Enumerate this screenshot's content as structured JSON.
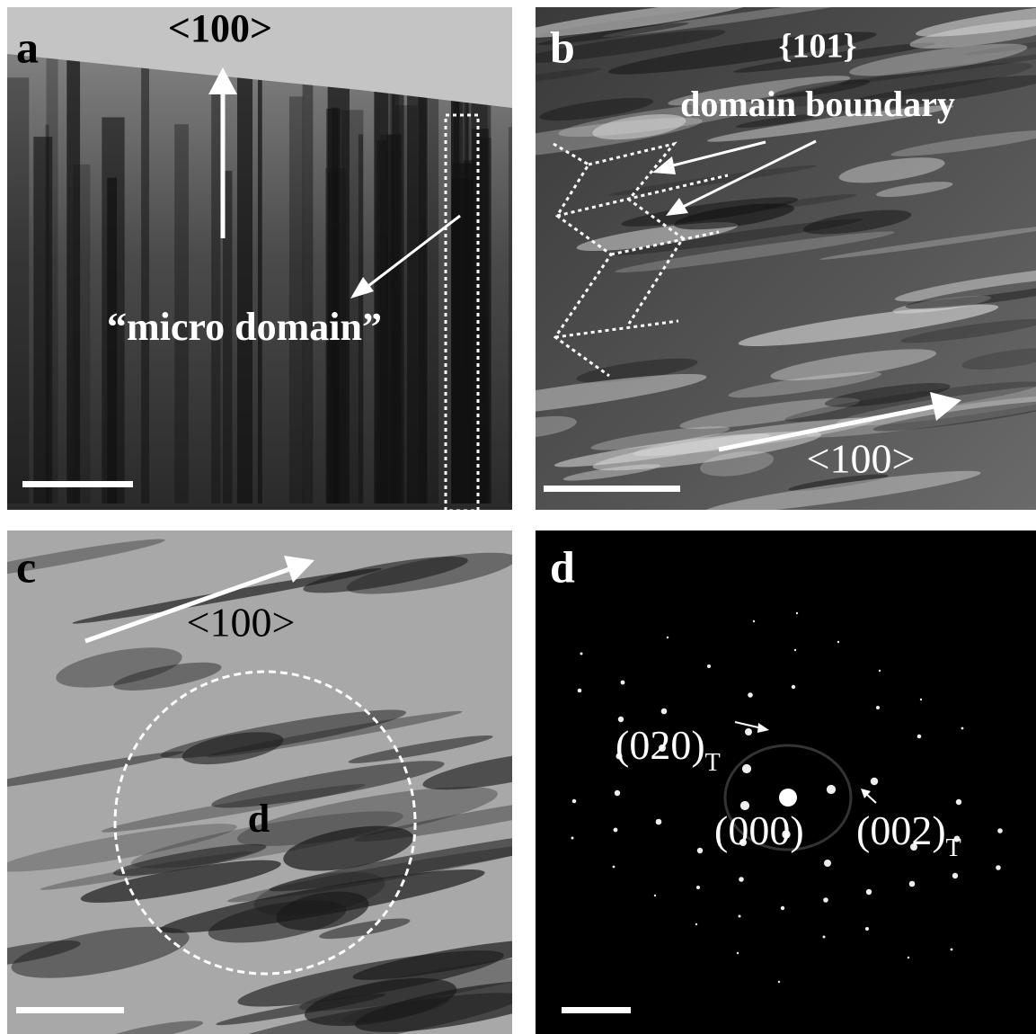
{
  "panels": [
    {
      "label": "a",
      "direction": "<100>",
      "annotation": "“micro domain”"
    },
    {
      "label": "b",
      "plane": "{101}",
      "annotation": "domain boundary",
      "direction": "<100>"
    },
    {
      "label": "c",
      "direction": "<100>",
      "region": "d"
    },
    {
      "label": "d",
      "spots": [
        {
          "text": "(020)",
          "subscript": "T"
        },
        {
          "text": "(000)"
        },
        {
          "text": "(002)",
          "subscript": "T"
        }
      ]
    }
  ]
}
